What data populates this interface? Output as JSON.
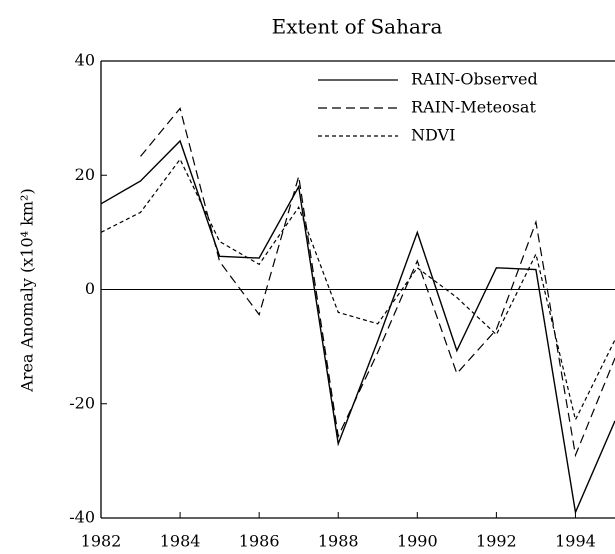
{
  "chart_data": {
    "type": "line",
    "title": "Extent of Sahara",
    "y_label": "Area Anomaly (x10⁴ km²)",
    "x": [
      1982,
      1983,
      1984,
      1985,
      1986,
      1987,
      1988,
      1989,
      1990,
      1991,
      1992,
      1993,
      1994,
      1995
    ],
    "series": [
      {
        "name": "RAIN-Observed",
        "color": "#000000",
        "linestyle": "solid",
        "values": [
          15,
          19,
          26,
          5.8,
          5.5,
          18,
          -27,
          -9,
          10,
          -10.7,
          3.8,
          3.5,
          -39,
          -23
        ]
      },
      {
        "name": "RAIN-Meteosat",
        "color": "#000000",
        "linestyle": "dashed",
        "values": [
          null,
          23.3,
          31.7,
          4.9,
          -4.4,
          19.8,
          -25.7,
          -11,
          5,
          -14.7,
          -7,
          11.8,
          -29,
          -12
        ]
      },
      {
        "name": "NDVI",
        "color": "#000000",
        "linestyle": "dotted",
        "values": [
          10,
          13.5,
          22.8,
          8.4,
          4.4,
          14.4,
          -4,
          -6,
          3.8,
          -1.4,
          -7.9,
          6.2,
          -22.8,
          -8.8
        ]
      }
    ],
    "xlim": [
      1982,
      1995
    ],
    "xticks": [
      1982,
      1984,
      1986,
      1988,
      1990,
      1992,
      1994
    ],
    "ylim": [
      -40,
      40
    ],
    "yticks": [
      -40,
      -20,
      0,
      20,
      40
    ],
    "legend": "upper right"
  }
}
